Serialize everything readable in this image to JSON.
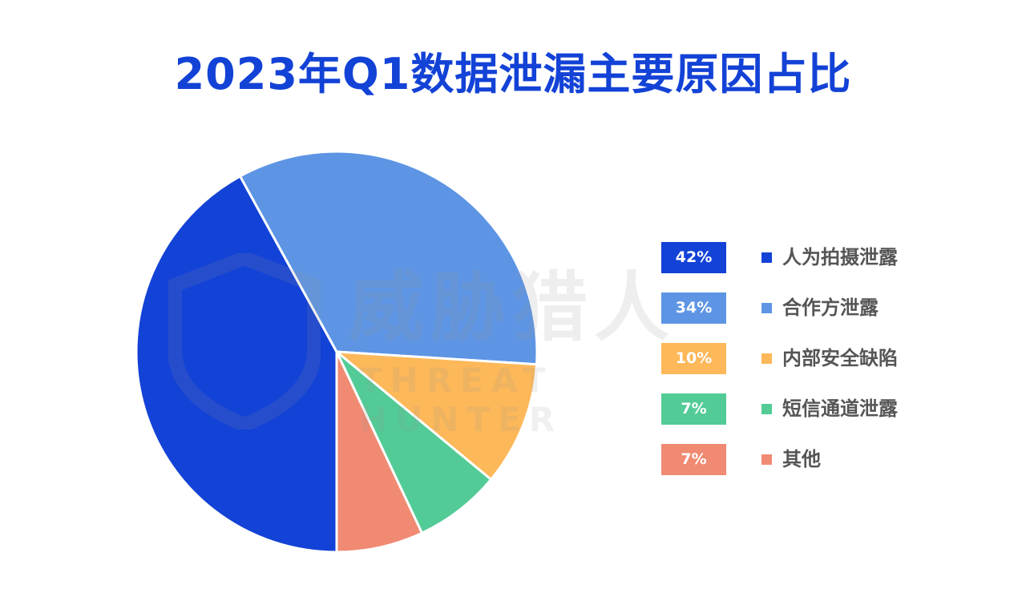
{
  "title": "2023年Q1数据泄漏主要原因占比",
  "watermark": {
    "brand_cn": "威胁猎人",
    "brand_en": "THREAT HUNTER"
  },
  "chart_data": {
    "type": "pie",
    "title": "2023年Q1数据泄漏主要原因占比",
    "legend_position": "right",
    "slices": [
      {
        "label": "人为拍摄泄露",
        "value": 42,
        "display": "42%",
        "color": "#1342d6"
      },
      {
        "label": "合作方泄露",
        "value": 34,
        "display": "34%",
        "color": "#5d95e4"
      },
      {
        "label": "内部安全缺陷",
        "value": 10,
        "display": "10%",
        "color": "#fdb859"
      },
      {
        "label": "短信通道泄露",
        "value": 7,
        "display": "7%",
        "color": "#53cb96"
      },
      {
        "label": "其他",
        "value": 7,
        "display": "7%",
        "color": "#f08a72"
      }
    ]
  }
}
